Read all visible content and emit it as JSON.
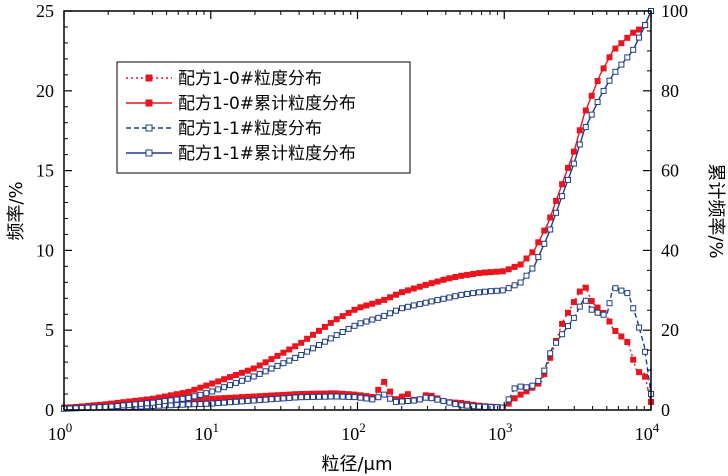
{
  "chart_data": {
    "type": "line",
    "xlabel": "粒径/μm",
    "ylabel_left": "频率/%",
    "ylabel_right": "累计频率/%",
    "x_scale": "log",
    "xlim": [
      1,
      10000
    ],
    "ylim_left": [
      0,
      25
    ],
    "ylim_right": [
      0,
      100
    ],
    "x_ticks": [
      {
        "base": "10",
        "exp": "0"
      },
      {
        "base": "10",
        "exp": "1"
      },
      {
        "base": "10",
        "exp": "2"
      },
      {
        "base": "10",
        "exp": "3"
      },
      {
        "base": "10",
        "exp": "4"
      }
    ],
    "y_ticks_left": [
      "0",
      "5",
      "10",
      "15",
      "20",
      "25"
    ],
    "y_ticks_right": [
      "0",
      "20",
      "40",
      "60",
      "80",
      "100"
    ],
    "grid": false,
    "legend_position": "upper-left",
    "colors": {
      "red": "#e8141e",
      "blue": "#1e3c8c"
    },
    "series": [
      {
        "name": "配方1-0#粒度分布",
        "color": "#e8141e",
        "line": "dotted",
        "marker": "filled-square",
        "axis": "left",
        "points": [
          [
            1,
            0.15
          ],
          [
            2,
            0.3
          ],
          [
            4,
            0.45
          ],
          [
            7,
            0.6
          ],
          [
            10,
            0.7
          ],
          [
            20,
            0.85
          ],
          [
            40,
            1.0
          ],
          [
            70,
            1.05
          ],
          [
            100,
            0.95
          ],
          [
            130,
            0.8
          ],
          [
            150,
            1.85
          ],
          [
            180,
            0.65
          ],
          [
            220,
            1.0
          ],
          [
            250,
            0.5
          ],
          [
            300,
            1.0
          ],
          [
            400,
            0.5
          ],
          [
            500,
            0.45
          ],
          [
            700,
            0.25
          ],
          [
            1000,
            0.15
          ],
          [
            1200,
            0.8
          ],
          [
            1500,
            1.3
          ],
          [
            1800,
            1.8
          ],
          [
            2100,
            3.5
          ],
          [
            2500,
            5.5
          ],
          [
            3000,
            6.8
          ],
          [
            3500,
            7.9
          ],
          [
            4000,
            6.7
          ],
          [
            5000,
            5.9
          ],
          [
            5500,
            5.1
          ],
          [
            7000,
            4.2
          ],
          [
            8000,
            2.4
          ],
          [
            9000,
            2.3
          ],
          [
            10000,
            0.5
          ]
        ]
      },
      {
        "name": "配方1-0#累计粒度分布",
        "color": "#e8141e",
        "line": "solid",
        "marker": "filled-square",
        "axis": "right",
        "points": [
          [
            1,
            0.5
          ],
          [
            2,
            1.5
          ],
          [
            4,
            2.8
          ],
          [
            7,
            4.5
          ],
          [
            10,
            6.5
          ],
          [
            20,
            10.5
          ],
          [
            40,
            16.5
          ],
          [
            70,
            22.5
          ],
          [
            100,
            25.5
          ],
          [
            150,
            27.5
          ],
          [
            200,
            29.5
          ],
          [
            300,
            31.5
          ],
          [
            400,
            32.8
          ],
          [
            500,
            33.6
          ],
          [
            700,
            34.4
          ],
          [
            1000,
            34.8
          ],
          [
            1300,
            36.5
          ],
          [
            1600,
            40.0
          ],
          [
            2000,
            47.0
          ],
          [
            2500,
            57.0
          ],
          [
            3000,
            65.0
          ],
          [
            3500,
            74.0
          ],
          [
            4500,
            84.0
          ],
          [
            5500,
            90.0
          ],
          [
            7500,
            94.5
          ],
          [
            9000,
            96.0
          ],
          [
            10000,
            100.0
          ]
        ]
      },
      {
        "name": "配方1-1#粒度分布",
        "color": "#1e3c8c",
        "line": "dashed",
        "marker": "open-square",
        "axis": "left",
        "points": [
          [
            1,
            0.1
          ],
          [
            3,
            0.2
          ],
          [
            7,
            0.35
          ],
          [
            10,
            0.4
          ],
          [
            20,
            0.6
          ],
          [
            40,
            0.8
          ],
          [
            70,
            0.85
          ],
          [
            100,
            0.8
          ],
          [
            130,
            0.65
          ],
          [
            150,
            1.0
          ],
          [
            180,
            0.5
          ],
          [
            250,
            0.6
          ],
          [
            300,
            0.8
          ],
          [
            500,
            0.3
          ],
          [
            700,
            0.2
          ],
          [
            1000,
            0.15
          ],
          [
            1200,
            1.5
          ],
          [
            1500,
            1.4
          ],
          [
            1800,
            2.0
          ],
          [
            2100,
            3.8
          ],
          [
            2500,
            4.8
          ],
          [
            3000,
            5.8
          ],
          [
            3500,
            7.0
          ],
          [
            4000,
            6.2
          ],
          [
            5000,
            5.9
          ],
          [
            5500,
            7.7
          ],
          [
            7000,
            7.3
          ],
          [
            8000,
            5.7
          ],
          [
            9000,
            4.0
          ],
          [
            10000,
            1.0
          ]
        ]
      },
      {
        "name": "配方1-1#累计粒度分布",
        "color": "#1e3c8c",
        "line": "solid",
        "marker": "open-square",
        "axis": "right",
        "points": [
          [
            1,
            0.3
          ],
          [
            2,
            0.8
          ],
          [
            4,
            1.8
          ],
          [
            7,
            3.0
          ],
          [
            10,
            4.5
          ],
          [
            20,
            8.5
          ],
          [
            40,
            13.5
          ],
          [
            70,
            18.5
          ],
          [
            100,
            21.5
          ],
          [
            150,
            23.5
          ],
          [
            200,
            25.5
          ],
          [
            300,
            27.0
          ],
          [
            400,
            28.0
          ],
          [
            500,
            28.8
          ],
          [
            700,
            29.6
          ],
          [
            1000,
            30.0
          ],
          [
            1300,
            32.0
          ],
          [
            1600,
            36.0
          ],
          [
            2000,
            44.0
          ],
          [
            2500,
            54.0
          ],
          [
            3000,
            62.0
          ],
          [
            3500,
            70.0
          ],
          [
            4500,
            78.5
          ],
          [
            5500,
            84.0
          ],
          [
            7500,
            90.0
          ],
          [
            9000,
            96.0
          ],
          [
            10000,
            100.0
          ]
        ]
      }
    ]
  }
}
